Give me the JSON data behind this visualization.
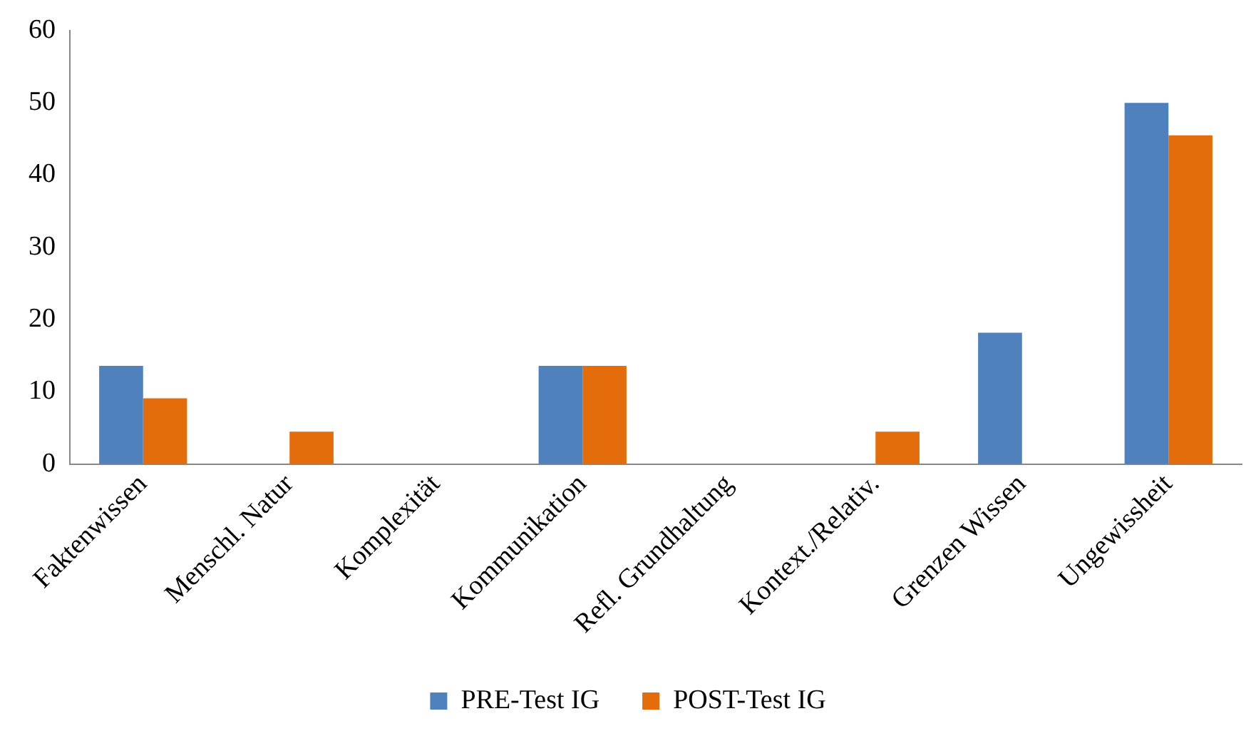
{
  "chart_data": {
    "type": "bar",
    "categories": [
      "Faktenwissen",
      "Menschl. Natur",
      "Komplexität",
      "Kommunikation",
      "Refl. Grundhaltung",
      "Kontext./Relativ.",
      "Grenzen Wissen",
      "Ungewissheit"
    ],
    "series": [
      {
        "name": "PRE-Test IG",
        "color": "#4f81bd",
        "values": [
          13.6,
          0,
          0,
          13.6,
          0,
          0,
          18.2,
          50
        ]
      },
      {
        "name": "POST-Test IG",
        "color": "#e46c0a",
        "values": [
          9.1,
          4.5,
          0,
          13.6,
          0,
          4.5,
          0,
          45.5
        ]
      }
    ],
    "ylim": [
      0,
      60
    ],
    "yticks": [
      0,
      10,
      20,
      30,
      40,
      50,
      60
    ],
    "grid": false,
    "legend": "bottom"
  }
}
